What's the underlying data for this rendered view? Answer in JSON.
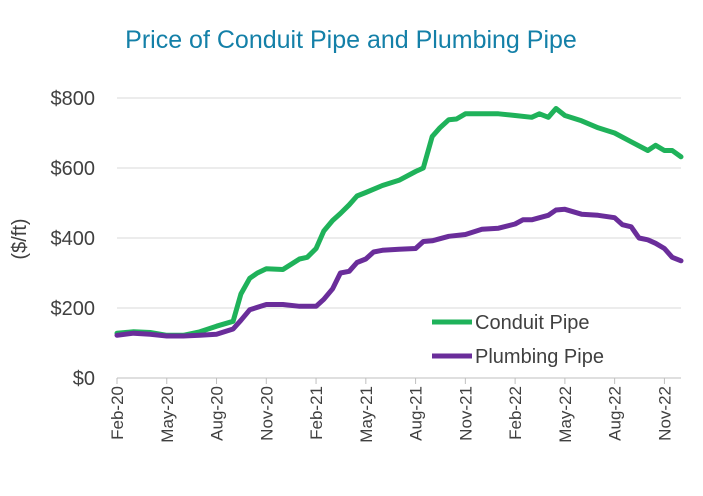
{
  "chart_data": {
    "type": "line",
    "title": "Price of Conduit Pipe and Plumbing Pipe",
    "xlabel": "",
    "ylabel": "($/ft)",
    "ylim": [
      0,
      800
    ],
    "yticks": [
      0,
      200,
      400,
      600,
      800
    ],
    "ytick_labels": [
      "$0",
      "$200",
      "$400",
      "$600",
      "$800"
    ],
    "xlim": [
      "2020-02",
      "2022-12"
    ],
    "xtick_labels": [
      "Feb-20",
      "May-20",
      "Aug-20",
      "Nov-20",
      "Feb-21",
      "May-21",
      "Aug-21",
      "Nov-21",
      "Feb-22",
      "May-22",
      "Aug-22",
      "Nov-22"
    ],
    "grid": true,
    "legend_position": "bottom-right",
    "series": [
      {
        "name": "Conduit Pipe",
        "color": "#1fb25a",
        "points": [
          [
            "2020-02",
            128
          ],
          [
            "2020-03",
            132
          ],
          [
            "2020-04",
            130
          ],
          [
            "2020-05",
            122
          ],
          [
            "2020-06",
            122
          ],
          [
            "2020-07",
            132
          ],
          [
            "2020-08",
            148
          ],
          [
            "2020-09",
            162
          ],
          [
            "2020-09-15",
            240
          ],
          [
            "2020-10",
            285
          ],
          [
            "2020-10-15",
            300
          ],
          [
            "2020-11",
            312
          ],
          [
            "2020-12",
            310
          ],
          [
            "2021-01",
            340
          ],
          [
            "2021-01-15",
            345
          ],
          [
            "2021-02",
            370
          ],
          [
            "2021-02-15",
            420
          ],
          [
            "2021-03",
            450
          ],
          [
            "2021-03-15",
            470
          ],
          [
            "2021-04",
            495
          ],
          [
            "2021-04-15",
            520
          ],
          [
            "2021-05",
            530
          ],
          [
            "2021-06",
            550
          ],
          [
            "2021-07",
            565
          ],
          [
            "2021-08",
            590
          ],
          [
            "2021-08-15",
            600
          ],
          [
            "2021-09",
            690
          ],
          [
            "2021-09-15",
            715
          ],
          [
            "2021-10",
            738
          ],
          [
            "2021-10-15",
            740
          ],
          [
            "2021-11",
            755
          ],
          [
            "2021-12",
            755
          ],
          [
            "2022-01",
            755
          ],
          [
            "2022-02",
            750
          ],
          [
            "2022-03",
            745
          ],
          [
            "2022-03-15",
            755
          ],
          [
            "2022-04",
            745
          ],
          [
            "2022-04-15",
            770
          ],
          [
            "2022-05",
            750
          ],
          [
            "2022-06",
            735
          ],
          [
            "2022-07",
            715
          ],
          [
            "2022-08",
            700
          ],
          [
            "2022-09",
            675
          ],
          [
            "2022-10",
            650
          ],
          [
            "2022-10-15",
            665
          ],
          [
            "2022-11",
            650
          ],
          [
            "2022-11-15",
            650
          ],
          [
            "2022-12",
            632
          ]
        ]
      },
      {
        "name": "Plumbing Pipe",
        "color": "#6a2d9a",
        "points": [
          [
            "2020-02",
            122
          ],
          [
            "2020-03",
            128
          ],
          [
            "2020-04",
            125
          ],
          [
            "2020-05",
            120
          ],
          [
            "2020-06",
            120
          ],
          [
            "2020-07",
            122
          ],
          [
            "2020-08",
            125
          ],
          [
            "2020-09",
            140
          ],
          [
            "2020-09-15",
            165
          ],
          [
            "2020-10",
            195
          ],
          [
            "2020-11",
            210
          ],
          [
            "2020-12",
            210
          ],
          [
            "2021-01",
            205
          ],
          [
            "2021-01-15",
            205
          ],
          [
            "2021-02",
            205
          ],
          [
            "2021-02-15",
            225
          ],
          [
            "2021-03",
            255
          ],
          [
            "2021-03-15",
            300
          ],
          [
            "2021-04",
            305
          ],
          [
            "2021-04-15",
            330
          ],
          [
            "2021-05",
            340
          ],
          [
            "2021-05-15",
            360
          ],
          [
            "2021-06",
            365
          ],
          [
            "2021-07",
            368
          ],
          [
            "2021-08",
            370
          ],
          [
            "2021-08-15",
            390
          ],
          [
            "2021-09",
            392
          ],
          [
            "2021-10",
            405
          ],
          [
            "2021-11",
            410
          ],
          [
            "2021-12",
            425
          ],
          [
            "2022-01",
            428
          ],
          [
            "2022-02",
            440
          ],
          [
            "2022-02-15",
            452
          ],
          [
            "2022-03",
            452
          ],
          [
            "2022-04",
            465
          ],
          [
            "2022-04-15",
            480
          ],
          [
            "2022-05",
            482
          ],
          [
            "2022-06",
            468
          ],
          [
            "2022-07",
            465
          ],
          [
            "2022-08",
            458
          ],
          [
            "2022-08-15",
            438
          ],
          [
            "2022-09",
            432
          ],
          [
            "2022-09-15",
            400
          ],
          [
            "2022-10",
            395
          ],
          [
            "2022-10-15",
            385
          ],
          [
            "2022-11",
            370
          ],
          [
            "2022-11-15",
            345
          ],
          [
            "2022-12",
            335
          ]
        ]
      }
    ]
  }
}
